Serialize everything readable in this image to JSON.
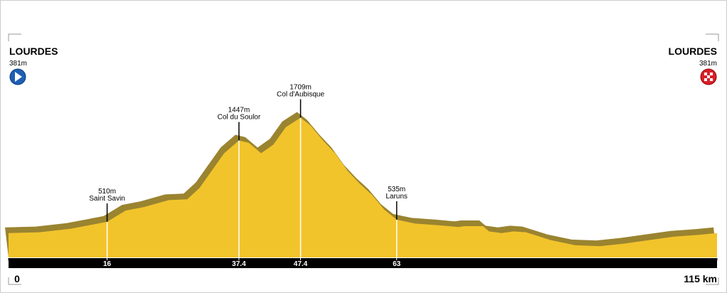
{
  "chart_data": {
    "type": "area",
    "start": {
      "name": "LOURDES",
      "label": "381m"
    },
    "finish": {
      "name": "LOURDES",
      "label": "381m"
    },
    "x": [
      0,
      5,
      10,
      13,
      16,
      19,
      22,
      26,
      29,
      31,
      33,
      35,
      37.4,
      39,
      41,
      43,
      45,
      47.4,
      49,
      51,
      53,
      55,
      57,
      59,
      61,
      63,
      66,
      70,
      73,
      74,
      77,
      78,
      80,
      82,
      84,
      88,
      92,
      96,
      100,
      104,
      108,
      112,
      115
    ],
    "values": [
      381,
      390,
      430,
      470,
      510,
      640,
      680,
      760,
      770,
      900,
      1100,
      1300,
      1447,
      1420,
      1300,
      1400,
      1600,
      1709,
      1620,
      1450,
      1300,
      1100,
      950,
      820,
      650,
      535,
      490,
      470,
      450,
      460,
      460,
      400,
      380,
      400,
      390,
      300,
      240,
      230,
      260,
      300,
      340,
      360,
      381
    ],
    "color": "#f2c42b",
    "shade_color": "#9a8430",
    "annotations": [
      {
        "x": 16,
        "value": 510,
        "value_label": "510m",
        "name": "Saint Savin"
      },
      {
        "x": 37.4,
        "value": 1447,
        "value_label": "1447m",
        "name": "Col du Soulor"
      },
      {
        "x": 47.4,
        "value": 1709,
        "value_label": "1709m",
        "name": "Col d'Aubisque"
      },
      {
        "x": 63,
        "value": 535,
        "value_label": "535m",
        "name": "Laruns"
      }
    ],
    "xlim": [
      0,
      115
    ],
    "ylim": [
      100,
      2000
    ],
    "xticks": [
      0,
      16,
      37.4,
      47.4,
      63,
      {
        "value": 115,
        "label": "115 km"
      }
    ]
  }
}
